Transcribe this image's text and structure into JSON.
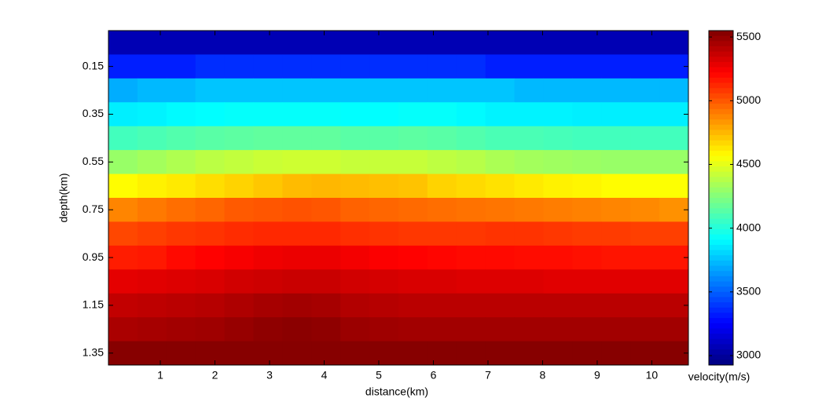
{
  "chart_data": {
    "type": "heatmap",
    "colormap": "jet",
    "xlabel": "distance(km)",
    "ylabel": "depth(km)",
    "colorbar_label": "velocity(m/s)",
    "xlim": [
      0.05,
      10.67
    ],
    "ylim": [
      0,
      1.4
    ],
    "y_reversed": true,
    "xticks": [
      1,
      2,
      3,
      4,
      5,
      6,
      7,
      8,
      9,
      10
    ],
    "yticks": [
      0.15,
      0.35,
      0.55,
      0.75,
      0.95,
      1.15,
      1.35
    ],
    "clim": [
      2926,
      5550
    ],
    "cticks": [
      3000,
      3500,
      4000,
      4500,
      5000,
      5500
    ],
    "x": [
      0.316,
      0.846,
      1.377,
      1.908,
      2.439,
      2.97,
      3.501,
      4.032,
      4.563,
      5.094,
      5.625,
      6.156,
      6.687,
      7.218,
      7.749,
      8.28,
      8.811,
      9.342,
      9.873,
      10.404
    ],
    "y": [
      0.05,
      0.15,
      0.25,
      0.35,
      0.45,
      0.55,
      0.65,
      0.75,
      0.85,
      0.95,
      1.05,
      1.15,
      1.25,
      1.35
    ],
    "values": [
      [
        3060,
        3060,
        3060,
        3060,
        3060,
        3060,
        3060,
        3060,
        3060,
        3060,
        3060,
        3060,
        3060,
        3060,
        3060,
        3060,
        3060,
        3060,
        3060,
        3060
      ],
      [
        3330,
        3330,
        3330,
        3370,
        3370,
        3370,
        3370,
        3370,
        3370,
        3370,
        3370,
        3370,
        3370,
        3330,
        3330,
        3330,
        3330,
        3330,
        3330,
        3330
      ],
      [
        3700,
        3730,
        3730,
        3760,
        3760,
        3760,
        3760,
        3760,
        3760,
        3760,
        3760,
        3760,
        3760,
        3760,
        3730,
        3730,
        3730,
        3730,
        3730,
        3730
      ],
      [
        3870,
        3880,
        3900,
        3910,
        3920,
        3920,
        3920,
        3920,
        3910,
        3910,
        3920,
        3920,
        3900,
        3880,
        3880,
        3880,
        3870,
        3870,
        3870,
        3870
      ],
      [
        4080,
        4100,
        4120,
        4140,
        4150,
        4160,
        4160,
        4160,
        4140,
        4140,
        4150,
        4140,
        4120,
        4100,
        4100,
        4090,
        4080,
        4080,
        4080,
        4080
      ],
      [
        4300,
        4330,
        4360,
        4390,
        4410,
        4430,
        4440,
        4440,
        4420,
        4420,
        4420,
        4400,
        4380,
        4350,
        4330,
        4320,
        4310,
        4300,
        4300,
        4300
      ],
      [
        4570,
        4600,
        4620,
        4650,
        4680,
        4710,
        4740,
        4750,
        4740,
        4730,
        4720,
        4680,
        4660,
        4640,
        4620,
        4600,
        4590,
        4570,
        4560,
        4560
      ],
      [
        4880,
        4910,
        4940,
        4960,
        4990,
        5000,
        5010,
        5000,
        4970,
        4960,
        4950,
        4940,
        4930,
        4920,
        4910,
        4900,
        4890,
        4880,
        4870,
        4850
      ],
      [
        5040,
        5060,
        5080,
        5090,
        5110,
        5120,
        5120,
        5120,
        5100,
        5090,
        5080,
        5080,
        5080,
        5090,
        5090,
        5080,
        5070,
        5070,
        5060,
        5060
      ],
      [
        5150,
        5160,
        5200,
        5220,
        5240,
        5260,
        5270,
        5270,
        5250,
        5230,
        5220,
        5210,
        5200,
        5200,
        5190,
        5190,
        5180,
        5170,
        5170,
        5170
      ],
      [
        5290,
        5300,
        5310,
        5320,
        5340,
        5350,
        5360,
        5360,
        5340,
        5330,
        5320,
        5320,
        5310,
        5310,
        5310,
        5300,
        5300,
        5300,
        5300,
        5300
      ],
      [
        5380,
        5390,
        5400,
        5410,
        5430,
        5450,
        5460,
        5450,
        5420,
        5410,
        5400,
        5400,
        5400,
        5400,
        5400,
        5400,
        5400,
        5400,
        5400,
        5400
      ],
      [
        5440,
        5450,
        5460,
        5470,
        5490,
        5510,
        5520,
        5510,
        5480,
        5470,
        5460,
        5460,
        5460,
        5460,
        5460,
        5460,
        5460,
        5460,
        5460,
        5460
      ],
      [
        5530,
        5530,
        5530,
        5530,
        5530,
        5530,
        5530,
        5530,
        5530,
        5530,
        5530,
        5530,
        5530,
        5530,
        5530,
        5530,
        5530,
        5530,
        5530,
        5530
      ]
    ]
  }
}
